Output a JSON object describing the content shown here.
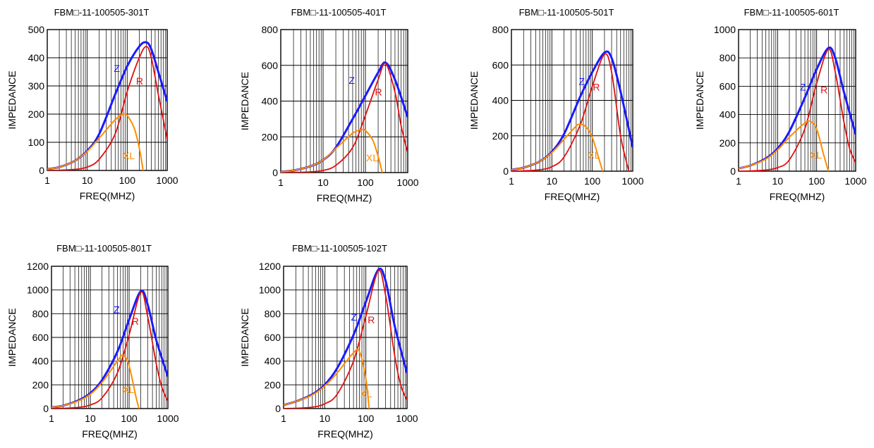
{
  "chart_data": [
    {
      "type": "line",
      "title": "FBM□-11-100505-301T",
      "xlabel": "FREQ(MHZ)",
      "ylabel": "IMPEDANCE",
      "xscale": "log",
      "xlim": [
        1,
        1000
      ],
      "ylim": [
        0,
        500
      ],
      "xticks": [
        "1",
        "10",
        "100",
        "1000"
      ],
      "yticks": [
        "0",
        "100",
        "200",
        "300",
        "400",
        "500"
      ],
      "grid": true,
      "legend": "inline labels",
      "series": [
        {
          "name": "Z",
          "color": "#1a1aff",
          "x": [
            1,
            2,
            5,
            10,
            20,
            50,
            100,
            200,
            300,
            400,
            600,
            1000
          ],
          "y": [
            5,
            12,
            35,
            70,
            130,
            270,
            370,
            440,
            455,
            430,
            350,
            245
          ]
        },
        {
          "name": "R",
          "color": "#e01010",
          "x": [
            1,
            2,
            5,
            10,
            20,
            50,
            100,
            200,
            300,
            400,
            600,
            1000
          ],
          "y": [
            0,
            1,
            4,
            12,
            40,
            130,
            280,
            400,
            440,
            400,
            270,
            110
          ]
        },
        {
          "name": "XL",
          "color": "#ff8c00",
          "x": [
            1,
            2,
            5,
            10,
            20,
            50,
            80,
            100,
            150,
            200,
            250
          ],
          "y": [
            5,
            12,
            35,
            68,
            115,
            180,
            200,
            195,
            150,
            80,
            0
          ]
        }
      ]
    },
    {
      "type": "line",
      "title": "FBM□-11-100505-401T",
      "xlabel": "FREQ(MHZ)",
      "ylabel": "IMPEDANCE",
      "xscale": "log",
      "xlim": [
        1,
        1000
      ],
      "ylim": [
        0,
        800
      ],
      "xticks": [
        "1",
        "10",
        "100",
        "1000"
      ],
      "yticks": [
        "0",
        "200",
        "400",
        "600",
        "800"
      ],
      "grid": true,
      "legend": "inline labels",
      "series": [
        {
          "name": "Z",
          "color": "#1a1aff",
          "x": [
            1,
            2,
            5,
            10,
            20,
            50,
            100,
            200,
            300,
            500,
            1000
          ],
          "y": [
            5,
            12,
            35,
            70,
            140,
            300,
            430,
            560,
            615,
            520,
            310
          ]
        },
        {
          "name": "R",
          "color": "#e01010",
          "x": [
            1,
            2,
            5,
            10,
            20,
            50,
            100,
            200,
            300,
            500,
            700,
            1000
          ],
          "y": [
            0,
            1,
            4,
            12,
            40,
            140,
            320,
            520,
            610,
            450,
            260,
            110
          ]
        },
        {
          "name": "XL",
          "color": "#ff8c00",
          "x": [
            1,
            2,
            5,
            10,
            20,
            50,
            80,
            100,
            150,
            200,
            250
          ],
          "y": [
            5,
            12,
            35,
            70,
            135,
            220,
            240,
            235,
            180,
            90,
            0
          ]
        }
      ]
    },
    {
      "type": "line",
      "title": "FBM□-11-100505-501T",
      "xlabel": "FREQ(MHZ)",
      "ylabel": "IMPEDANCE",
      "xscale": "log",
      "xlim": [
        1,
        1000
      ],
      "ylim": [
        0,
        800
      ],
      "xticks": [
        "1",
        "10",
        "100",
        "1000"
      ],
      "yticks": [
        "0",
        "200",
        "400",
        "600",
        "800"
      ],
      "grid": true,
      "legend": "inline labels",
      "series": [
        {
          "name": "Z",
          "color": "#1a1aff",
          "x": [
            1,
            2,
            5,
            10,
            20,
            50,
            100,
            200,
            300,
            500,
            1000
          ],
          "y": [
            8,
            20,
            55,
            110,
            210,
            420,
            560,
            670,
            640,
            450,
            135
          ]
        },
        {
          "name": "R",
          "color": "#e01010",
          "x": [
            1,
            2,
            5,
            10,
            20,
            50,
            100,
            200,
            300,
            500,
            800
          ],
          "y": [
            0,
            2,
            8,
            25,
            80,
            260,
            480,
            660,
            560,
            200,
            0
          ]
        },
        {
          "name": "XL",
          "color": "#ff8c00",
          "x": [
            1,
            2,
            5,
            10,
            20,
            40,
            50,
            70,
            100,
            150,
            180
          ],
          "y": [
            8,
            20,
            55,
            105,
            180,
            255,
            265,
            250,
            190,
            60,
            0
          ]
        }
      ]
    },
    {
      "type": "line",
      "title": "FBM□-11-100505-601T",
      "xlabel": "FREQ(MHZ)",
      "ylabel": "IMPEDANCE",
      "xscale": "log",
      "xlim": [
        1,
        1000
      ],
      "ylim": [
        0,
        1000
      ],
      "xticks": [
        "1",
        "10",
        "100",
        "1000"
      ],
      "yticks": [
        "0",
        "200",
        "400",
        "600",
        "800",
        "1000"
      ],
      "grid": true,
      "legend": "inline labels",
      "series": [
        {
          "name": "Z",
          "color": "#1a1aff",
          "x": [
            1,
            2,
            5,
            10,
            20,
            50,
            100,
            200,
            300,
            500,
            1000
          ],
          "y": [
            20,
            40,
            90,
            160,
            280,
            520,
            720,
            870,
            800,
            560,
            260
          ]
        },
        {
          "name": "R",
          "color": "#e01010",
          "x": [
            1,
            2,
            5,
            10,
            20,
            50,
            100,
            200,
            300,
            500,
            700,
            1000
          ],
          "y": [
            0,
            2,
            8,
            25,
            80,
            300,
            620,
            860,
            700,
            350,
            160,
            60
          ]
        },
        {
          "name": "XL",
          "color": "#ff8c00",
          "x": [
            1,
            2,
            5,
            10,
            20,
            50,
            70,
            100,
            150,
            200
          ],
          "y": [
            20,
            40,
            85,
            150,
            240,
            340,
            350,
            300,
            120,
            0
          ]
        }
      ]
    },
    {
      "type": "line",
      "title": "FBM□-11-100505-801T",
      "xlabel": "FREQ(MHZ)",
      "ylabel": "IMPEDANCE",
      "xscale": "log",
      "xlim": [
        1,
        1000
      ],
      "ylim": [
        0,
        1200
      ],
      "xticks": [
        "1",
        "10",
        "100",
        "1000"
      ],
      "yticks": [
        "0",
        "200",
        "400",
        "600",
        "800",
        "1000",
        "1200"
      ],
      "grid": true,
      "legend": "inline labels",
      "series": [
        {
          "name": "Z",
          "color": "#1a1aff",
          "x": [
            1,
            2,
            5,
            10,
            20,
            50,
            100,
            200,
            300,
            500,
            1000
          ],
          "y": [
            10,
            25,
            70,
            130,
            240,
            480,
            750,
            990,
            880,
            580,
            270
          ]
        },
        {
          "name": "R",
          "color": "#e01010",
          "x": [
            1,
            2,
            5,
            10,
            20,
            50,
            100,
            200,
            300,
            500,
            700,
            1000
          ],
          "y": [
            0,
            2,
            10,
            30,
            90,
            300,
            620,
            980,
            780,
            380,
            180,
            60
          ]
        },
        {
          "name": "XL",
          "color": "#ff8c00",
          "x": [
            1,
            2,
            5,
            10,
            20,
            50,
            70,
            100,
            150,
            180
          ],
          "y": [
            10,
            25,
            65,
            120,
            220,
            400,
            450,
            360,
            100,
            0
          ]
        }
      ]
    },
    {
      "type": "line",
      "title": "FBM□-11-100505-102T",
      "xlabel": "FREQ(MHZ)",
      "ylabel": "IMPEDANCE",
      "xscale": "log",
      "xlim": [
        1,
        1000
      ],
      "ylim": [
        0,
        1200
      ],
      "xticks": [
        "1",
        "10",
        "100",
        "1000"
      ],
      "yticks": [
        "0",
        "200",
        "400",
        "600",
        "800",
        "1000",
        "1200"
      ],
      "grid": true,
      "legend": "inline labels",
      "series": [
        {
          "name": "Z",
          "color": "#1a1aff",
          "x": [
            1,
            2,
            5,
            10,
            20,
            50,
            100,
            200,
            300,
            500,
            1000
          ],
          "y": [
            30,
            60,
            120,
            200,
            340,
            620,
            900,
            1170,
            1080,
            700,
            300
          ]
        },
        {
          "name": "R",
          "color": "#e01010",
          "x": [
            1,
            2,
            5,
            10,
            20,
            50,
            100,
            200,
            300,
            500,
            700,
            1000
          ],
          "y": [
            0,
            3,
            12,
            40,
            120,
            400,
            780,
            1160,
            960,
            450,
            200,
            70
          ]
        },
        {
          "name": "XL",
          "color": "#ff8c00",
          "x": [
            1,
            2,
            5,
            10,
            20,
            50,
            70,
            100,
            120
          ],
          "y": [
            30,
            60,
            115,
            190,
            300,
            470,
            480,
            250,
            0
          ]
        }
      ]
    }
  ]
}
